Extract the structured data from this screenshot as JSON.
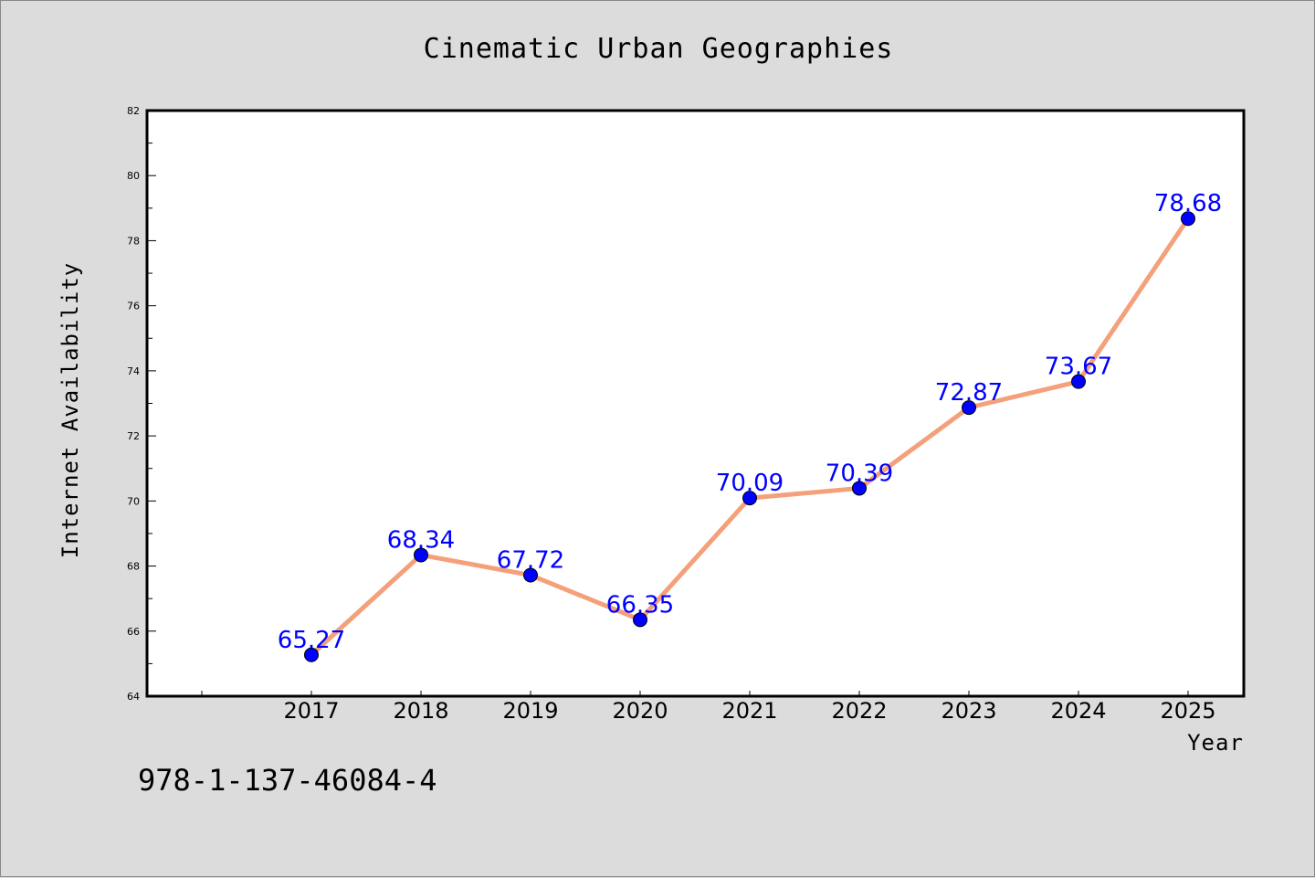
{
  "chart_data": {
    "type": "line",
    "title": "Cinematic Urban Geographies",
    "xlabel": "Year",
    "ylabel": "Internet Availability",
    "categories": [
      "2017",
      "2018",
      "2019",
      "2020",
      "2021",
      "2022",
      "2023",
      "2024",
      "2025"
    ],
    "series": [
      {
        "values": [
          65.27,
          68.34,
          67.72,
          66.35,
          70.09,
          70.39,
          72.87,
          73.67,
          78.68
        ],
        "labels": [
          "65.27",
          "68.34",
          "67.72",
          "66.35",
          "70.09",
          "70.39",
          "72.87",
          "73.67",
          "78.68"
        ],
        "line_color": "#f4a07a",
        "marker_color": "#0000ff"
      }
    ],
    "ylim": [
      64,
      82
    ],
    "yticks": [
      "64",
      "66",
      "68",
      "70",
      "72",
      "74",
      "76",
      "78",
      "80",
      "82"
    ],
    "grid": false,
    "legend": "none",
    "data_label_color": "#0000ff"
  },
  "annotation": "978-1-137-46084-4",
  "colors": {
    "background": "#dcdcdc",
    "plot_background": "#ffffff"
  }
}
